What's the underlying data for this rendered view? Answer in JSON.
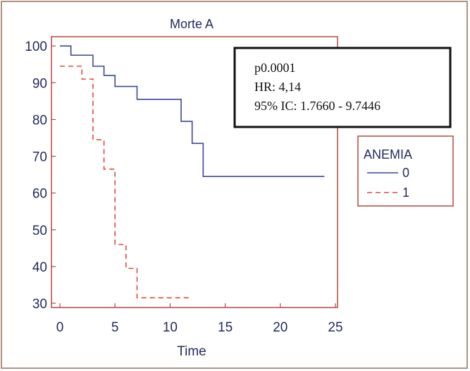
{
  "colors": {
    "frame": "#9a6b55",
    "plot_border": "#b4483c",
    "axis_text": "#222a5e",
    "series_0": "#3a4795",
    "series_1": "#e04a3a",
    "stats_border": "#111111"
  },
  "stats_box": {
    "line1": "p0.0001",
    "line2": "HR: 4,14",
    "line3": "95% IC: 1.7660 - 9.7446"
  },
  "chart_data": {
    "type": "line",
    "step": true,
    "title": "Morte A",
    "xlabel": "Time",
    "ylabel": "",
    "xlim": [
      0,
      25
    ],
    "ylim": [
      30,
      101
    ],
    "xticks": [
      0,
      5,
      10,
      15,
      20,
      25
    ],
    "yticks": [
      30,
      40,
      50,
      60,
      70,
      80,
      90,
      100
    ],
    "grid": false,
    "legend": {
      "title": "ANEMIA",
      "placement": "right"
    },
    "series": [
      {
        "name": "0",
        "style": "solid",
        "x": [
          0,
          1,
          3,
          4,
          5,
          7,
          11,
          12,
          13,
          24
        ],
        "y": [
          100,
          97.5,
          94.5,
          92,
          89,
          85.5,
          79.5,
          73.5,
          64.5,
          64.5
        ]
      },
      {
        "name": "1",
        "style": "dashed",
        "x": [
          0,
          2,
          3,
          4,
          5,
          6,
          7,
          12
        ],
        "y": [
          94.5,
          91,
          74.5,
          66.5,
          46,
          39.5,
          31.5,
          31.5
        ]
      }
    ]
  }
}
